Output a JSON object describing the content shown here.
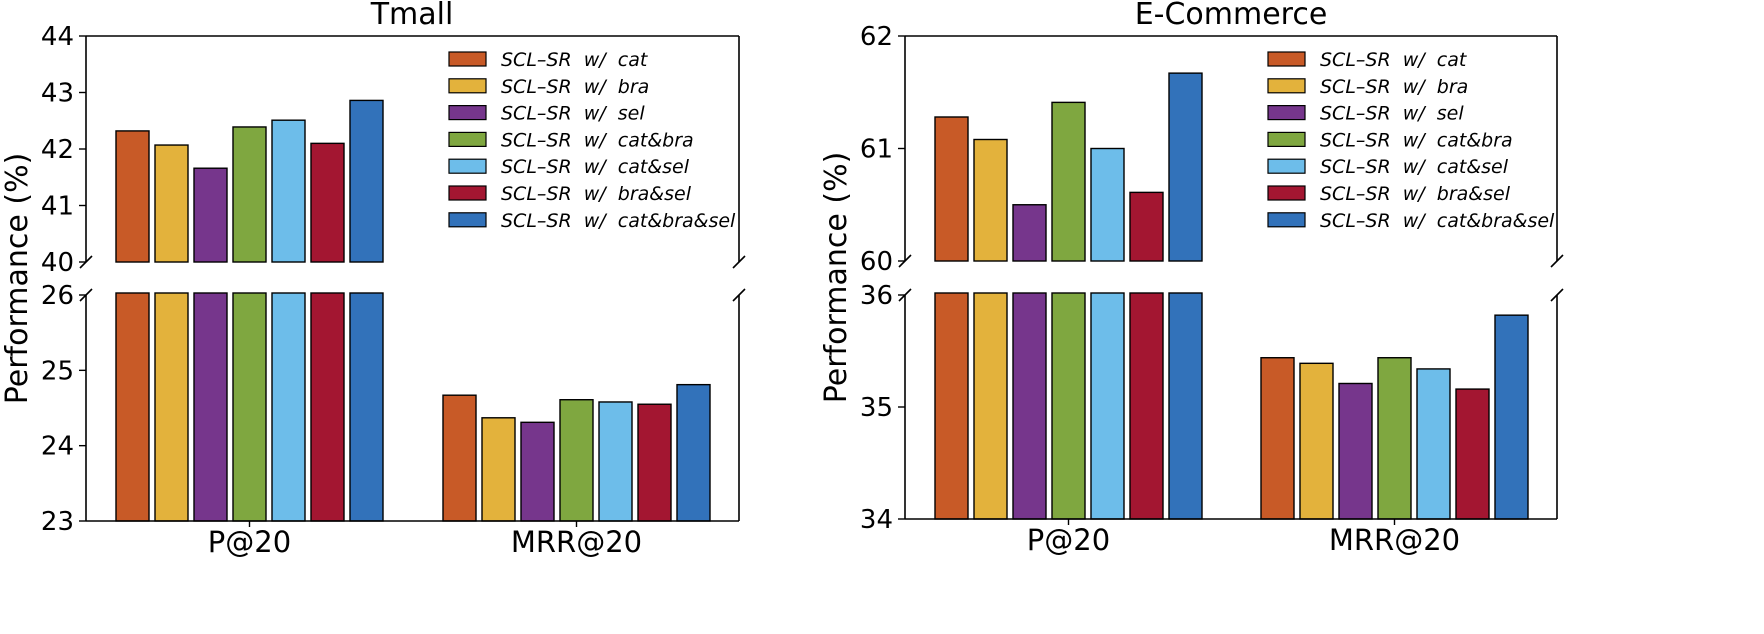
{
  "colors": [
    "#C85A27",
    "#E3B23C",
    "#76368C",
    "#7FA740",
    "#6DBDEA",
    "#A31631",
    "#3272BA"
  ],
  "legend_labels": [
    "SCL–SR  w/  cat",
    "SCL–SR  w/  bra",
    "SCL–SR  w/  sel",
    "SCL–SR  w/  cat&bra",
    "SCL–SR  w/  cat&sel",
    "SCL–SR  w/  bra&sel",
    "SCL–SR  w/  cat&bra&sel"
  ],
  "chart_data": [
    {
      "type": "bar",
      "title": "Tmall",
      "ylabel": "Performance (%)",
      "categories": [
        "P@20",
        "MRR@20"
      ],
      "broken_y_axis": true,
      "upper_ylim": [
        40,
        44
      ],
      "upper_ticks": [
        40,
        41,
        42,
        43,
        44
      ],
      "lower_ylim": [
        23,
        26
      ],
      "lower_ticks": [
        23,
        24,
        25,
        26
      ],
      "legend_position": "upper-right",
      "series": [
        {
          "name": "SCL–SR  w/  cat",
          "values": [
            42.32,
            24.67
          ]
        },
        {
          "name": "SCL–SR  w/  bra",
          "values": [
            42.07,
            24.37
          ]
        },
        {
          "name": "SCL–SR  w/  sel",
          "values": [
            41.66,
            24.31
          ]
        },
        {
          "name": "SCL–SR  w/  cat&bra",
          "values": [
            42.39,
            24.61
          ]
        },
        {
          "name": "SCL–SR  w/  cat&sel",
          "values": [
            42.51,
            24.58
          ]
        },
        {
          "name": "SCL–SR  w/  bra&sel",
          "values": [
            42.1,
            24.55
          ]
        },
        {
          "name": "SCL–SR  w/  cat&bra&sel",
          "values": [
            42.86,
            24.81
          ]
        }
      ]
    },
    {
      "type": "bar",
      "title": "E-Commerce",
      "ylabel": "Performance (%)",
      "categories": [
        "P@20",
        "MRR@20"
      ],
      "broken_y_axis": true,
      "upper_ylim": [
        60,
        62
      ],
      "upper_ticks": [
        60,
        61,
        62
      ],
      "lower_ylim": [
        34,
        36
      ],
      "lower_ticks": [
        34,
        35,
        36
      ],
      "legend_position": "upper-right",
      "series": [
        {
          "name": "SCL–SR  w/  cat",
          "values": [
            61.28,
            35.44
          ]
        },
        {
          "name": "SCL–SR  w/  bra",
          "values": [
            61.08,
            35.39
          ]
        },
        {
          "name": "SCL–SR  w/  sel",
          "values": [
            60.5,
            35.21
          ]
        },
        {
          "name": "SCL–SR  w/  cat&bra",
          "values": [
            61.41,
            35.44
          ]
        },
        {
          "name": "SCL–SR  w/  cat&sel",
          "values": [
            61.0,
            35.34
          ]
        },
        {
          "name": "SCL–SR  w/  bra&sel",
          "values": [
            60.61,
            35.16
          ]
        },
        {
          "name": "SCL–SR  w/  cat&bra&sel",
          "values": [
            61.67,
            35.82
          ]
        }
      ]
    }
  ]
}
